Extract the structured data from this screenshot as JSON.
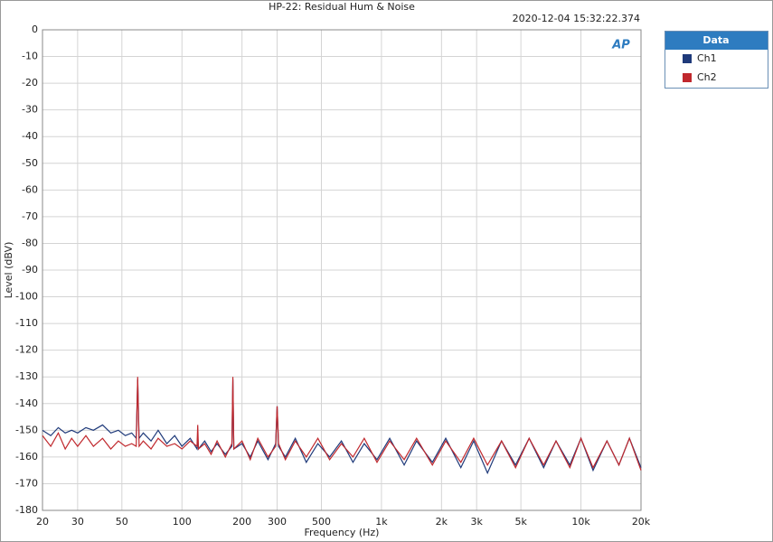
{
  "chart_data": {
    "type": "line",
    "title": "HP-22: Residual Hum & Noise",
    "timestamp": "2020-12-04 15:32:22.374",
    "logo": "AP",
    "x_label": "Frequency (Hz)",
    "y_label": "Level (dBV)",
    "legend_title": "Data",
    "log_x": true,
    "grid": true,
    "xlim": [
      20,
      20000
    ],
    "ylim": [
      -180,
      0
    ],
    "xticks": [
      20,
      30,
      50,
      100,
      200,
      300,
      500,
      {
        "value": 1000,
        "label": "1k"
      },
      {
        "value": 2000,
        "label": "2k"
      },
      {
        "value": 3000,
        "label": "3k"
      },
      {
        "value": 5000,
        "label": "5k"
      },
      {
        "value": 10000,
        "label": "10k"
      },
      {
        "value": 20000,
        "label": "20k"
      }
    ],
    "yticks": [
      0,
      -10,
      -20,
      -30,
      -40,
      -50,
      -60,
      -70,
      -80,
      -90,
      -100,
      -110,
      -120,
      -130,
      -140,
      -150,
      -160,
      -170,
      -180
    ],
    "x": [
      20,
      22,
      24,
      26,
      28,
      30,
      33,
      36,
      40,
      44,
      48,
      52,
      56,
      59,
      60,
      61,
      64,
      70,
      76,
      84,
      92,
      100,
      110,
      119,
      120,
      121,
      130,
      140,
      150,
      165,
      178,
      180,
      182,
      200,
      220,
      240,
      270,
      295,
      300,
      305,
      330,
      370,
      420,
      480,
      550,
      630,
      720,
      820,
      950,
      1100,
      1300,
      1500,
      1800,
      2100,
      2500,
      2900,
      3400,
      4000,
      4700,
      5500,
      6500,
      7500,
      8800,
      10000,
      11500,
      13500,
      15500,
      17500,
      20000
    ],
    "series": [
      {
        "name": "Ch1",
        "color": "#1f3a7a",
        "values": [
          -150,
          -152,
          -149,
          -151,
          -150,
          -151,
          -149,
          -150,
          -148,
          -151,
          -150,
          -152,
          -151,
          -153,
          -131,
          -153,
          -151,
          -154,
          -150,
          -155,
          -152,
          -156,
          -153,
          -157,
          -152,
          -157,
          -154,
          -158,
          -155,
          -159,
          -156,
          -131,
          -157,
          -155,
          -160,
          -154,
          -161,
          -155,
          -141,
          -156,
          -160,
          -153,
          -162,
          -155,
          -160,
          -154,
          -162,
          -155,
          -161,
          -153,
          -163,
          -154,
          -162,
          -153,
          -164,
          -154,
          -166,
          -154,
          -163,
          -153,
          -164,
          -154,
          -163,
          -153,
          -165,
          -154,
          -163,
          -153,
          -164
        ]
      },
      {
        "name": "Ch2",
        "color": "#c0282d",
        "values": [
          -152,
          -156,
          -151,
          -157,
          -153,
          -156,
          -152,
          -156,
          -153,
          -157,
          -154,
          -156,
          -155,
          -156,
          -130,
          -156,
          -154,
          -157,
          -153,
          -156,
          -155,
          -157,
          -154,
          -156,
          -148,
          -157,
          -155,
          -159,
          -154,
          -160,
          -155,
          -130,
          -157,
          -154,
          -161,
          -153,
          -160,
          -156,
          -141,
          -155,
          -161,
          -154,
          -160,
          -153,
          -161,
          -155,
          -160,
          -153,
          -162,
          -154,
          -161,
          -153,
          -163,
          -154,
          -162,
          -153,
          -163,
          -154,
          -164,
          -153,
          -163,
          -154,
          -164,
          -153,
          -164,
          -154,
          -163,
          -153,
          -165
        ]
      }
    ]
  }
}
